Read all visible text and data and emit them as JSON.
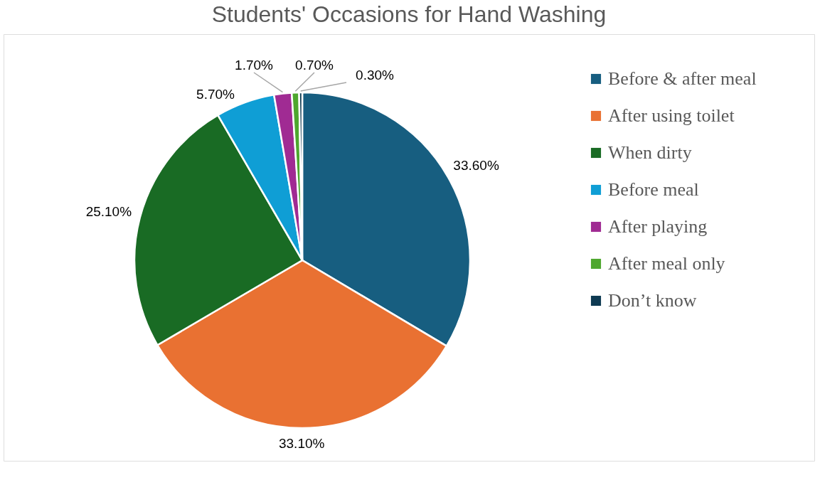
{
  "chart_data": {
    "type": "pie",
    "title": "Students' Occasions for Hand Washing",
    "categories": [
      "Before & after meal",
      "After using toilet",
      "When dirty",
      "Before meal",
      "After playing",
      "After meal only",
      "Don’t know"
    ],
    "values": [
      33.6,
      33.1,
      25.1,
      5.7,
      1.7,
      0.7,
      0.3
    ],
    "value_labels": [
      "33.60%",
      "33.10%",
      "25.10%",
      "5.70%",
      "1.70%",
      "0.70%",
      "0.30%"
    ],
    "colors": [
      "#175e80",
      "#e97132",
      "#196b24",
      "#0f9ed5",
      "#a02b93",
      "#4ea72e",
      "#0e3a52"
    ],
    "legend": "right"
  }
}
